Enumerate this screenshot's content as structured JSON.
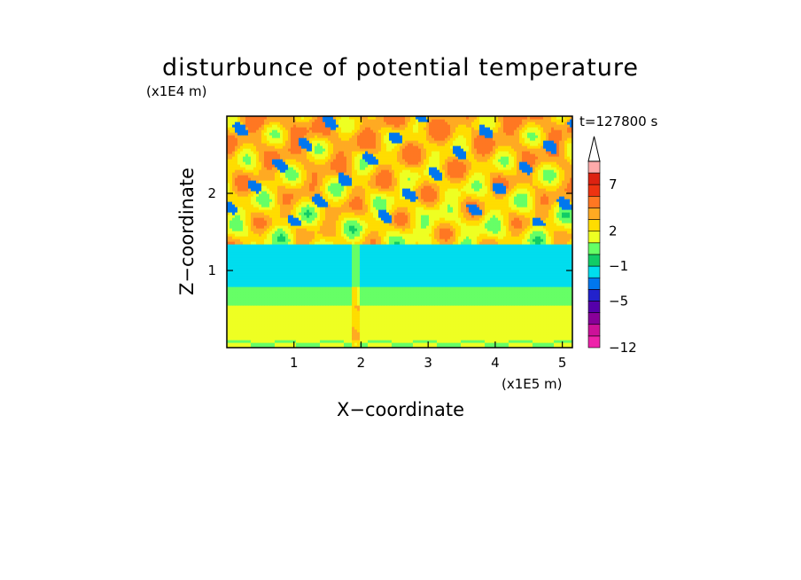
{
  "chart_data": {
    "type": "heatmap",
    "title": "disturbunce of potential temperature",
    "time_label": "t=127800 s",
    "xlabel": "X−coordinate",
    "ylabel": "Z−coordinate",
    "x_unit_label": "(x1E5 m)",
    "y_unit_label": "(x1E4 m)",
    "x_ticks": [
      1,
      2,
      3,
      4,
      5
    ],
    "y_ticks": [
      1,
      2
    ],
    "xlim": [
      0,
      5.15
    ],
    "ylim": [
      0,
      3.0
    ],
    "grid": false,
    "colorbar": {
      "placement": "right",
      "extend": "max",
      "tick_labels": [
        "7",
        "2",
        "−1",
        "−5",
        "−12"
      ],
      "colors": [
        "#ee22aa",
        "#cc1199",
        "#880099",
        "#5500aa",
        "#2222cc",
        "#0077ee",
        "#00ddee",
        "#11cc66",
        "#66ff66",
        "#eeff22",
        "#ffdd00",
        "#ffaa22",
        "#ff7722",
        "#ee3311",
        "#dd2211",
        "#ffaaaa",
        "#ffffff"
      ]
    },
    "field_description": {
      "layers": [
        {
          "z_range": [
            0.0,
            0.8
          ],
          "dominant_level": "0 to 2"
        },
        {
          "z_range": [
            0.8,
            1.4
          ],
          "dominant_level": "-1"
        },
        {
          "z_range": [
            1.4,
            3.0
          ],
          "dominant_level": "2 to 7, scattered -5"
        }
      ]
    }
  }
}
